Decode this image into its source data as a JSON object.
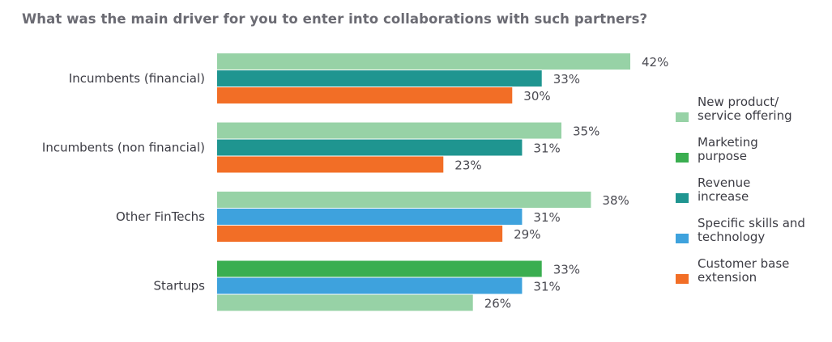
{
  "chart_data": {
    "type": "bar",
    "orientation": "horizontal",
    "title": "What was the main driver for you to enter into collaborations with such partners?",
    "value_suffix": "%",
    "xlim": [
      0,
      42
    ],
    "grid": false,
    "legend_position": "right",
    "categories": [
      "Incumbents (financial)",
      "Incumbents (non financial)",
      "Other FinTechs",
      "Startups"
    ],
    "legend": [
      {
        "name": "New product/ service offering",
        "lines": [
          "New product/",
          "service offering"
        ],
        "color": "#97d2a6"
      },
      {
        "name": "Marketing purpose",
        "lines": [
          "Marketing",
          "purpose"
        ],
        "color": "#3aae50"
      },
      {
        "name": "Revenue increase",
        "lines": [
          "Revenue",
          "increase"
        ],
        "color": "#1f9590"
      },
      {
        "name": "Specific skills and technology",
        "lines": [
          "Specific skills and",
          "technology"
        ],
        "color": "#3ea2dd"
      },
      {
        "name": "Customer base extension",
        "lines": [
          "Customer base",
          "extension"
        ],
        "color": "#f26e26"
      }
    ],
    "groups": [
      {
        "category": "Incumbents (financial)",
        "bars": [
          {
            "series": "New product/ service offering",
            "value": 42
          },
          {
            "series": "Revenue increase",
            "value": 33
          },
          {
            "series": "Customer base extension",
            "value": 30
          }
        ]
      },
      {
        "category": "Incumbents (non financial)",
        "bars": [
          {
            "series": "New product/ service offering",
            "value": 35
          },
          {
            "series": "Revenue increase",
            "value": 31
          },
          {
            "series": "Customer base extension",
            "value": 23
          }
        ]
      },
      {
        "category": "Other FinTechs",
        "bars": [
          {
            "series": "New product/ service offering",
            "value": 38
          },
          {
            "series": "Specific skills and technology",
            "value": 31
          },
          {
            "series": "Customer base extension",
            "value": 29
          }
        ]
      },
      {
        "category": "Startups",
        "bars": [
          {
            "series": "Marketing purpose",
            "value": 33
          },
          {
            "series": "Specific skills and technology",
            "value": 31
          },
          {
            "series": "New product/ service offering",
            "value": 26
          }
        ]
      }
    ]
  }
}
